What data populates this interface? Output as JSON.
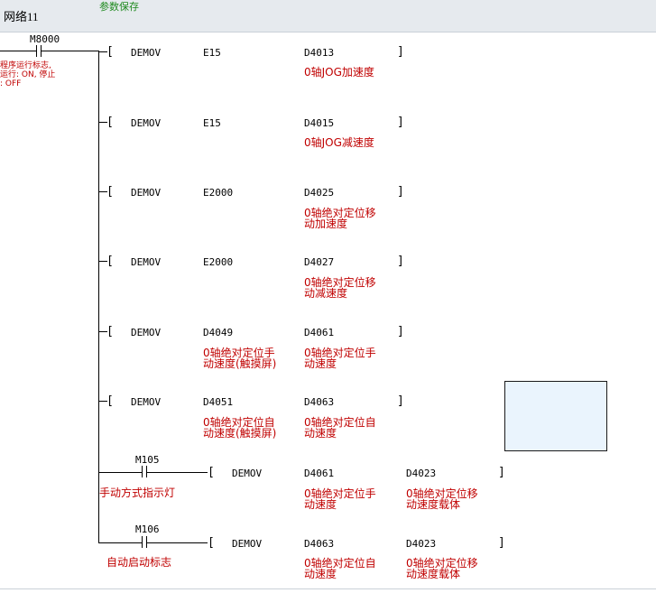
{
  "network": {
    "title": "网络11",
    "comment": "参数保存"
  },
  "power_contact": {
    "address": "M8000",
    "comment_lines": [
      "程序运行标志,",
      "运行: ON, 停止",
      ": OFF"
    ]
  },
  "instructions": [
    {
      "op": "DEMOV",
      "src": "E15",
      "src_comment": "",
      "dst": "D4013",
      "dst_comment": "0轴JOG加速度"
    },
    {
      "op": "DEMOV",
      "src": "E15",
      "src_comment": "",
      "dst": "D4015",
      "dst_comment": "0轴JOG减速度"
    },
    {
      "op": "DEMOV",
      "src": "E2000",
      "src_comment": "",
      "dst": "D4025",
      "dst_comment": "0轴绝对定位移\n动加速度"
    },
    {
      "op": "DEMOV",
      "src": "E2000",
      "src_comment": "",
      "dst": "D4027",
      "dst_comment": "0轴绝对定位移\n动减速度"
    },
    {
      "op": "DEMOV",
      "src": "D4049",
      "src_comment": "0轴绝对定位手\n动速度(触摸屏)",
      "dst": "D4061",
      "dst_comment": "0轴绝对定位手\n动速度"
    },
    {
      "op": "DEMOV",
      "src": "D4051",
      "src_comment": "0轴绝对定位自\n动速度(触摸屏)",
      "dst": "D4063",
      "dst_comment": "0轴绝对定位自\n动速度"
    }
  ],
  "sub_branches": [
    {
      "contact": "M105",
      "contact_comment": "手动方式指示灯",
      "op": "DEMOV",
      "src": "D4061",
      "src_comment": "0轴绝对定位手\n动速度",
      "dst": "D4023",
      "dst_comment": "0轴绝对定位移\n动速度载体"
    },
    {
      "contact": "M106",
      "contact_comment": "自动启动标志",
      "op": "DEMOV",
      "src": "D4063",
      "src_comment": "0轴绝对定位自\n动速度",
      "dst": "D4023",
      "dst_comment": "0轴绝对定位移\n动速度载体"
    }
  ],
  "colors": {
    "header_bg": "#e6eaee",
    "comment_green": "#1f8a1f",
    "comment_red": "#c00000",
    "box_fill": "#eaf4fd"
  }
}
